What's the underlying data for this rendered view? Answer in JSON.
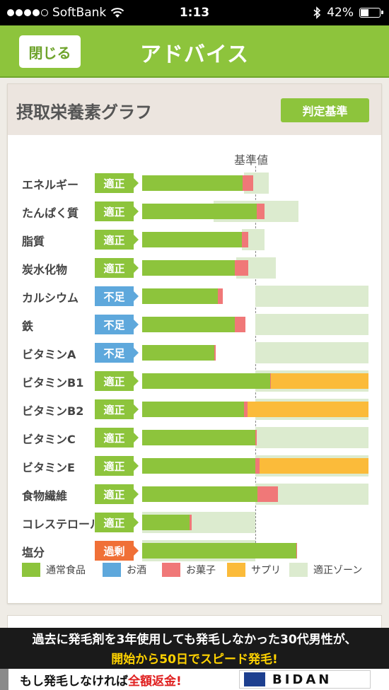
{
  "status_bar": {
    "carrier": "SoftBank",
    "time": "1:13",
    "battery_percent": "42%",
    "battery_level": 0.42,
    "signal_dots_filled": 4,
    "signal_dots_total": 5
  },
  "nav": {
    "close_label": "閉じる",
    "title": "アドバイス"
  },
  "card": {
    "title": "摂取栄養素グラフ",
    "criteria_label": "判定基準"
  },
  "chart_data": {
    "type": "bar",
    "stacked": true,
    "baseline_label": "基準値",
    "baseline_value": 100,
    "xlim": [
      0,
      200
    ],
    "categories": [
      "エネルギー",
      "たんぱく質",
      "脂質",
      "炭水化物",
      "カルシウム",
      "鉄",
      "ビタミンA",
      "ビタミンB1",
      "ビタミンB2",
      "ビタミンC",
      "ビタミンE",
      "食物繊維",
      "コレステロール",
      "塩分"
    ],
    "status": [
      "適正",
      "適正",
      "適正",
      "適正",
      "不足",
      "不足",
      "不足",
      "適正",
      "適正",
      "適正",
      "適正",
      "適正",
      "適正",
      "過剰"
    ],
    "series": [
      {
        "name": "通常食品",
        "color": "#8dc43c",
        "values": [
          89,
          101,
          88,
          82,
          67,
          82,
          64,
          113,
          90,
          100,
          100,
          102,
          42,
          136
        ]
      },
      {
        "name": "お酒",
        "color": "#5ea8dc",
        "values": [
          0,
          0,
          0,
          0,
          0,
          0,
          0,
          0,
          0,
          0,
          0,
          0,
          0,
          0
        ]
      },
      {
        "name": "お菓子",
        "color": "#f07878",
        "values": [
          9,
          7,
          6,
          12,
          4,
          9,
          1,
          1,
          3,
          1,
          4,
          18,
          2,
          1
        ]
      },
      {
        "name": "サプリ",
        "color": "#fbbb3a",
        "values": [
          0,
          0,
          0,
          0,
          0,
          0,
          0,
          86,
          107,
          0,
          96,
          0,
          0,
          0
        ]
      }
    ],
    "optimal_zone": [
      [
        90,
        112
      ],
      [
        63,
        138
      ],
      [
        88,
        108
      ],
      [
        83,
        118
      ],
      [
        100,
        200
      ],
      [
        100,
        200
      ],
      [
        100,
        200
      ],
      [
        100,
        200
      ],
      [
        100,
        200
      ],
      [
        100,
        200
      ],
      [
        100,
        200
      ],
      [
        100,
        200
      ],
      [
        0,
        100
      ],
      [
        0,
        100
      ]
    ],
    "legend": [
      {
        "label": "通常食品",
        "color": "#8dc43c"
      },
      {
        "label": "お酒",
        "color": "#5ea8dc"
      },
      {
        "label": "お菓子",
        "color": "#f07878"
      },
      {
        "label": "サプリ",
        "color": "#fbbb3a"
      },
      {
        "label": "適正ゾーン",
        "color": "#dcebcf"
      }
    ],
    "status_colors": {
      "適正": "#8dc43c",
      "不足": "#5ea8dc",
      "過剰": "#f07037"
    }
  },
  "ad": {
    "line1": "過去に発毛剤を3年使用しても発毛しなかった30代男性が、",
    "line2": "開始から50日でスピード発毛!",
    "cta_prefix": "もし発毛しなければ",
    "cta_highlight": "全額返金!",
    "brand": "BIDAN"
  }
}
